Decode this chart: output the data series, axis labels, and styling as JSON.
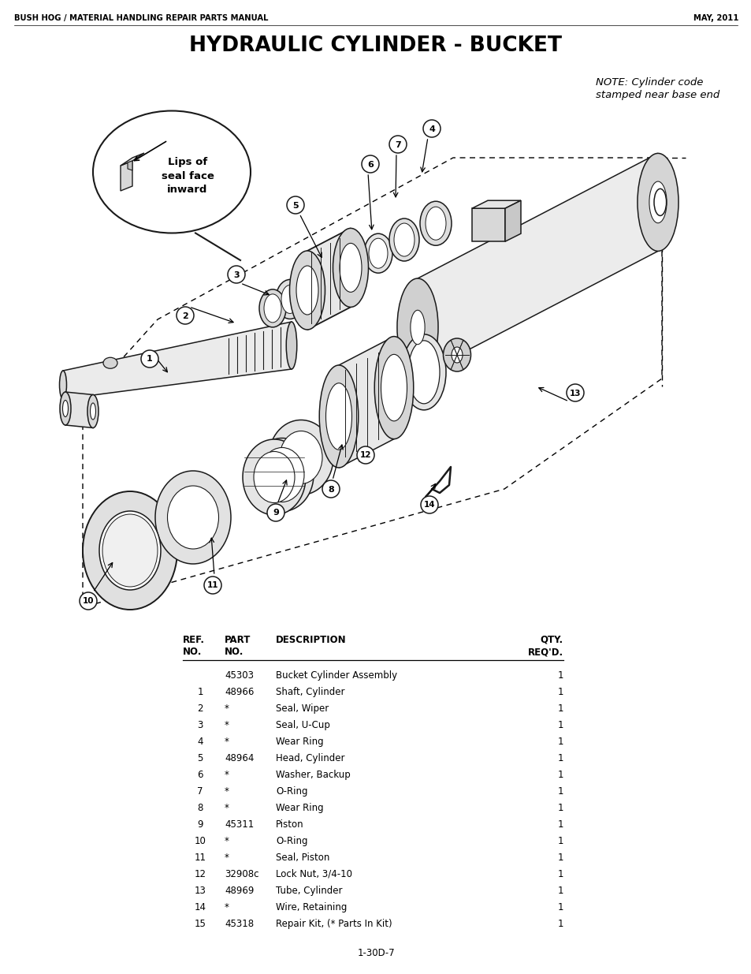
{
  "page_header_left": "BUSH HOG / MATERIAL HANDLING REPAIR PARTS MANUAL",
  "page_header_right": "MAY, 2011",
  "title": "HYDRAULIC CYLINDER - BUCKET",
  "note_line1": "NOTE: Cylinder code",
  "note_line2": "stamped near base end",
  "table_data": [
    [
      "",
      "45303",
      "Bucket Cylinder Assembly",
      "1"
    ],
    [
      "1",
      "48966",
      "Shaft, Cylinder",
      "1"
    ],
    [
      "2",
      "*",
      "Seal, Wiper",
      "1"
    ],
    [
      "3",
      "*",
      "Seal, U-Cup",
      "1"
    ],
    [
      "4",
      "*",
      "Wear Ring",
      "1"
    ],
    [
      "5",
      "48964",
      "Head, Cylinder",
      "1"
    ],
    [
      "6",
      "*",
      "Washer, Backup",
      "1"
    ],
    [
      "7",
      "*",
      "O-Ring",
      "1"
    ],
    [
      "8",
      "*",
      "Wear Ring",
      "1"
    ],
    [
      "9",
      "45311",
      "Piston",
      "1"
    ],
    [
      "10",
      "*",
      "O-Ring",
      "1"
    ],
    [
      "11",
      "*",
      "Seal, Piston",
      "1"
    ],
    [
      "12",
      "32908c",
      "Lock Nut, 3/4-10",
      "1"
    ],
    [
      "13",
      "48969",
      "Tube, Cylinder",
      "1"
    ],
    [
      "14",
      "*",
      "Wire, Retaining",
      "1"
    ],
    [
      "15",
      "45318",
      "Repair Kit, (* Parts In Kit)",
      "1"
    ]
  ],
  "footer": "1-30D-7",
  "bg_color": "#ffffff",
  "text_color": "#000000"
}
